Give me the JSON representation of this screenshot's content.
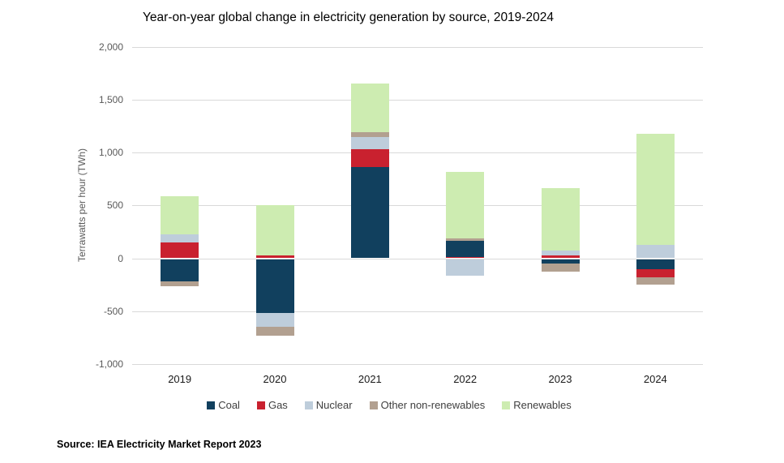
{
  "title": "Year-on-year global change in electricity generation by source, 2019-2024",
  "source": "Source: IEA Electricity Market Report 2023",
  "colors": {
    "Coal": "#11405e",
    "Gas": "#c9212f",
    "Nuclear": "#becddb",
    "Other non-renewables": "#b2a090",
    "Renewables": "#cdecb1",
    "gridline": "#d9d9d9"
  },
  "legend": [
    {
      "label": "Coal",
      "color": "#11405e"
    },
    {
      "label": "Gas",
      "color": "#c9212f"
    },
    {
      "label": "Nuclear",
      "color": "#becddb"
    },
    {
      "label": "Other non-renewables",
      "color": "#b2a090"
    },
    {
      "label": "Renewables",
      "color": "#cdecb1"
    }
  ],
  "chart_data": {
    "type": "bar",
    "subtype": "stacked-column",
    "title": "Year-on-year global change in electricity generation by source, 2019-2024",
    "xlabel": "",
    "ylabel": "Terrawatts per hour (TWh)",
    "ylim": [
      -1000,
      2000
    ],
    "y_tick_values": [
      2000,
      1500,
      1000,
      500,
      0,
      -500,
      -1000
    ],
    "y_tick_labels": [
      "2,000",
      "1,500",
      "1,000",
      "500",
      "0",
      "-500",
      "-1,000"
    ],
    "grid": "horizontal",
    "legend_position": "bottom",
    "categories": [
      "2019",
      "2020",
      "2021",
      "2022",
      "2023",
      "2024"
    ],
    "series": [
      {
        "name": "Coal",
        "values": [
          -210,
          -505,
          860,
          150,
          -35,
          -95
        ]
      },
      {
        "name": "Gas",
        "values": [
          150,
          30,
          170,
          15,
          25,
          -75
        ]
      },
      {
        "name": "Nuclear",
        "values": [
          80,
          -130,
          120,
          -155,
          50,
          130
        ]
      },
      {
        "name": "Other non-renewables",
        "values": [
          -45,
          -85,
          45,
          25,
          -80,
          -65
        ]
      },
      {
        "name": "Renewables",
        "values": [
          355,
          470,
          455,
          625,
          585,
          1050
        ]
      }
    ],
    "bars": [
      {
        "year": "2019",
        "segments": [
          {
            "series": "Gas",
            "value": 150
          },
          {
            "series": "Nuclear",
            "value": 80
          },
          {
            "series": "Renewables",
            "value": 355
          },
          {
            "series": "Coal",
            "value": -210
          },
          {
            "series": "Other non-renewables",
            "value": -45
          }
        ]
      },
      {
        "year": "2020",
        "segments": [
          {
            "series": "Gas",
            "value": 30
          },
          {
            "series": "Renewables",
            "value": 470
          },
          {
            "series": "Coal",
            "value": -505
          },
          {
            "series": "Nuclear",
            "value": -130
          },
          {
            "series": "Other non-renewables",
            "value": -85
          }
        ]
      },
      {
        "year": "2021",
        "segments": [
          {
            "series": "Coal",
            "value": 860
          },
          {
            "series": "Gas",
            "value": 170
          },
          {
            "series": "Nuclear",
            "value": 120
          },
          {
            "series": "Other non-renewables",
            "value": 45
          },
          {
            "series": "Renewables",
            "value": 455
          }
        ]
      },
      {
        "year": "2022",
        "segments": [
          {
            "series": "Gas",
            "value": 15
          },
          {
            "series": "Coal",
            "value": 150
          },
          {
            "series": "Other non-renewables",
            "value": 25
          },
          {
            "series": "Renewables",
            "value": 625
          },
          {
            "series": "Nuclear",
            "value": -155
          }
        ]
      },
      {
        "year": "2023",
        "segments": [
          {
            "series": "Gas",
            "value": 25
          },
          {
            "series": "Nuclear",
            "value": 50
          },
          {
            "series": "Renewables",
            "value": 585
          },
          {
            "series": "Coal",
            "value": -35
          },
          {
            "series": "Other non-renewables",
            "value": -80
          }
        ]
      },
      {
        "year": "2024",
        "segments": [
          {
            "series": "Nuclear",
            "value": 130
          },
          {
            "series": "Renewables",
            "value": 1050
          },
          {
            "series": "Coal",
            "value": -95
          },
          {
            "series": "Gas",
            "value": -75
          },
          {
            "series": "Other non-renewables",
            "value": -65
          }
        ]
      }
    ]
  }
}
